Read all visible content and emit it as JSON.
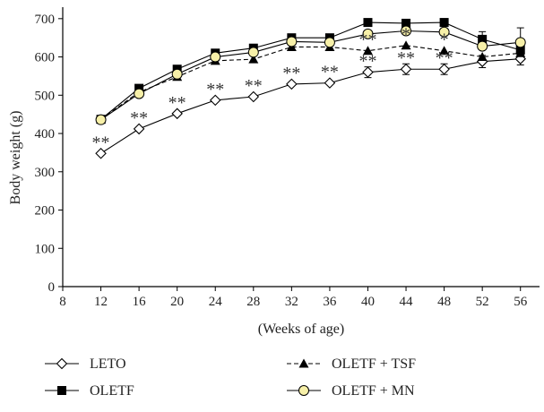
{
  "chart_data": {
    "type": "line",
    "xlabel": "(Weeks of age)",
    "ylabel": "Body weight (g)",
    "xlim": [
      8,
      58
    ],
    "ylim": [
      0,
      730
    ],
    "xticks": [
      8,
      12,
      16,
      20,
      24,
      28,
      32,
      36,
      40,
      44,
      48,
      52,
      56
    ],
    "yticks": [
      0,
      100,
      200,
      300,
      400,
      500,
      600,
      700
    ],
    "x": [
      12,
      16,
      20,
      24,
      28,
      32,
      36,
      40,
      44,
      48,
      52,
      56
    ],
    "legend_position": "bottom",
    "series": [
      {
        "name": "LETO",
        "marker": "diamond-open",
        "line": "solid",
        "values": [
          348,
          412,
          452,
          487,
          496,
          529,
          532,
          560,
          568,
          568,
          588,
          595
        ],
        "errors": [
          0,
          0,
          0,
          0,
          0,
          0,
          0,
          14,
          14,
          14,
          16,
          16
        ]
      },
      {
        "name": "OLETF",
        "marker": "square-filled",
        "line": "solid",
        "values": [
          437,
          518,
          568,
          610,
          623,
          650,
          650,
          690,
          688,
          690,
          646,
          618
        ],
        "errors": [
          0,
          0,
          0,
          0,
          0,
          0,
          0,
          0,
          10,
          10,
          20,
          0
        ]
      },
      {
        "name": "OLETF + TSF",
        "marker": "triangle-filled",
        "line": "dashed",
        "values": [
          437,
          508,
          548,
          590,
          594,
          626,
          626,
          616,
          630,
          616,
          600,
          610
        ],
        "errors": [
          0,
          0,
          0,
          0,
          0,
          0,
          0,
          0,
          0,
          0,
          0,
          0
        ]
      },
      {
        "name": "OLETF + MN",
        "marker": "circle-open-yellow",
        "line": "solid",
        "values": [
          436,
          504,
          555,
          600,
          612,
          640,
          638,
          660,
          668,
          665,
          628,
          638
        ],
        "errors": [
          0,
          0,
          0,
          0,
          0,
          0,
          0,
          0,
          0,
          0,
          0,
          38
        ]
      }
    ],
    "annotations": [
      {
        "x": 12,
        "y": 348,
        "text": "**"
      },
      {
        "x": 16,
        "y": 412,
        "text": "**"
      },
      {
        "x": 20,
        "y": 452,
        "text": "**"
      },
      {
        "x": 24,
        "y": 487,
        "text": "**"
      },
      {
        "x": 28,
        "y": 496,
        "text": "**"
      },
      {
        "x": 32,
        "y": 529,
        "text": "**"
      },
      {
        "x": 36,
        "y": 532,
        "text": "**"
      },
      {
        "x": 40,
        "y": 560,
        "text": "**"
      },
      {
        "x": 44,
        "y": 568,
        "text": "**"
      },
      {
        "x": 48,
        "y": 568,
        "text": "**"
      },
      {
        "x": 40,
        "y": 616,
        "text": "**"
      },
      {
        "x": 44,
        "y": 630,
        "text": "*"
      },
      {
        "x": 48,
        "y": 616,
        "text": "*"
      }
    ],
    "colors": {
      "line": "#000000",
      "mn_marker_fill": "#f7f0a8"
    }
  }
}
